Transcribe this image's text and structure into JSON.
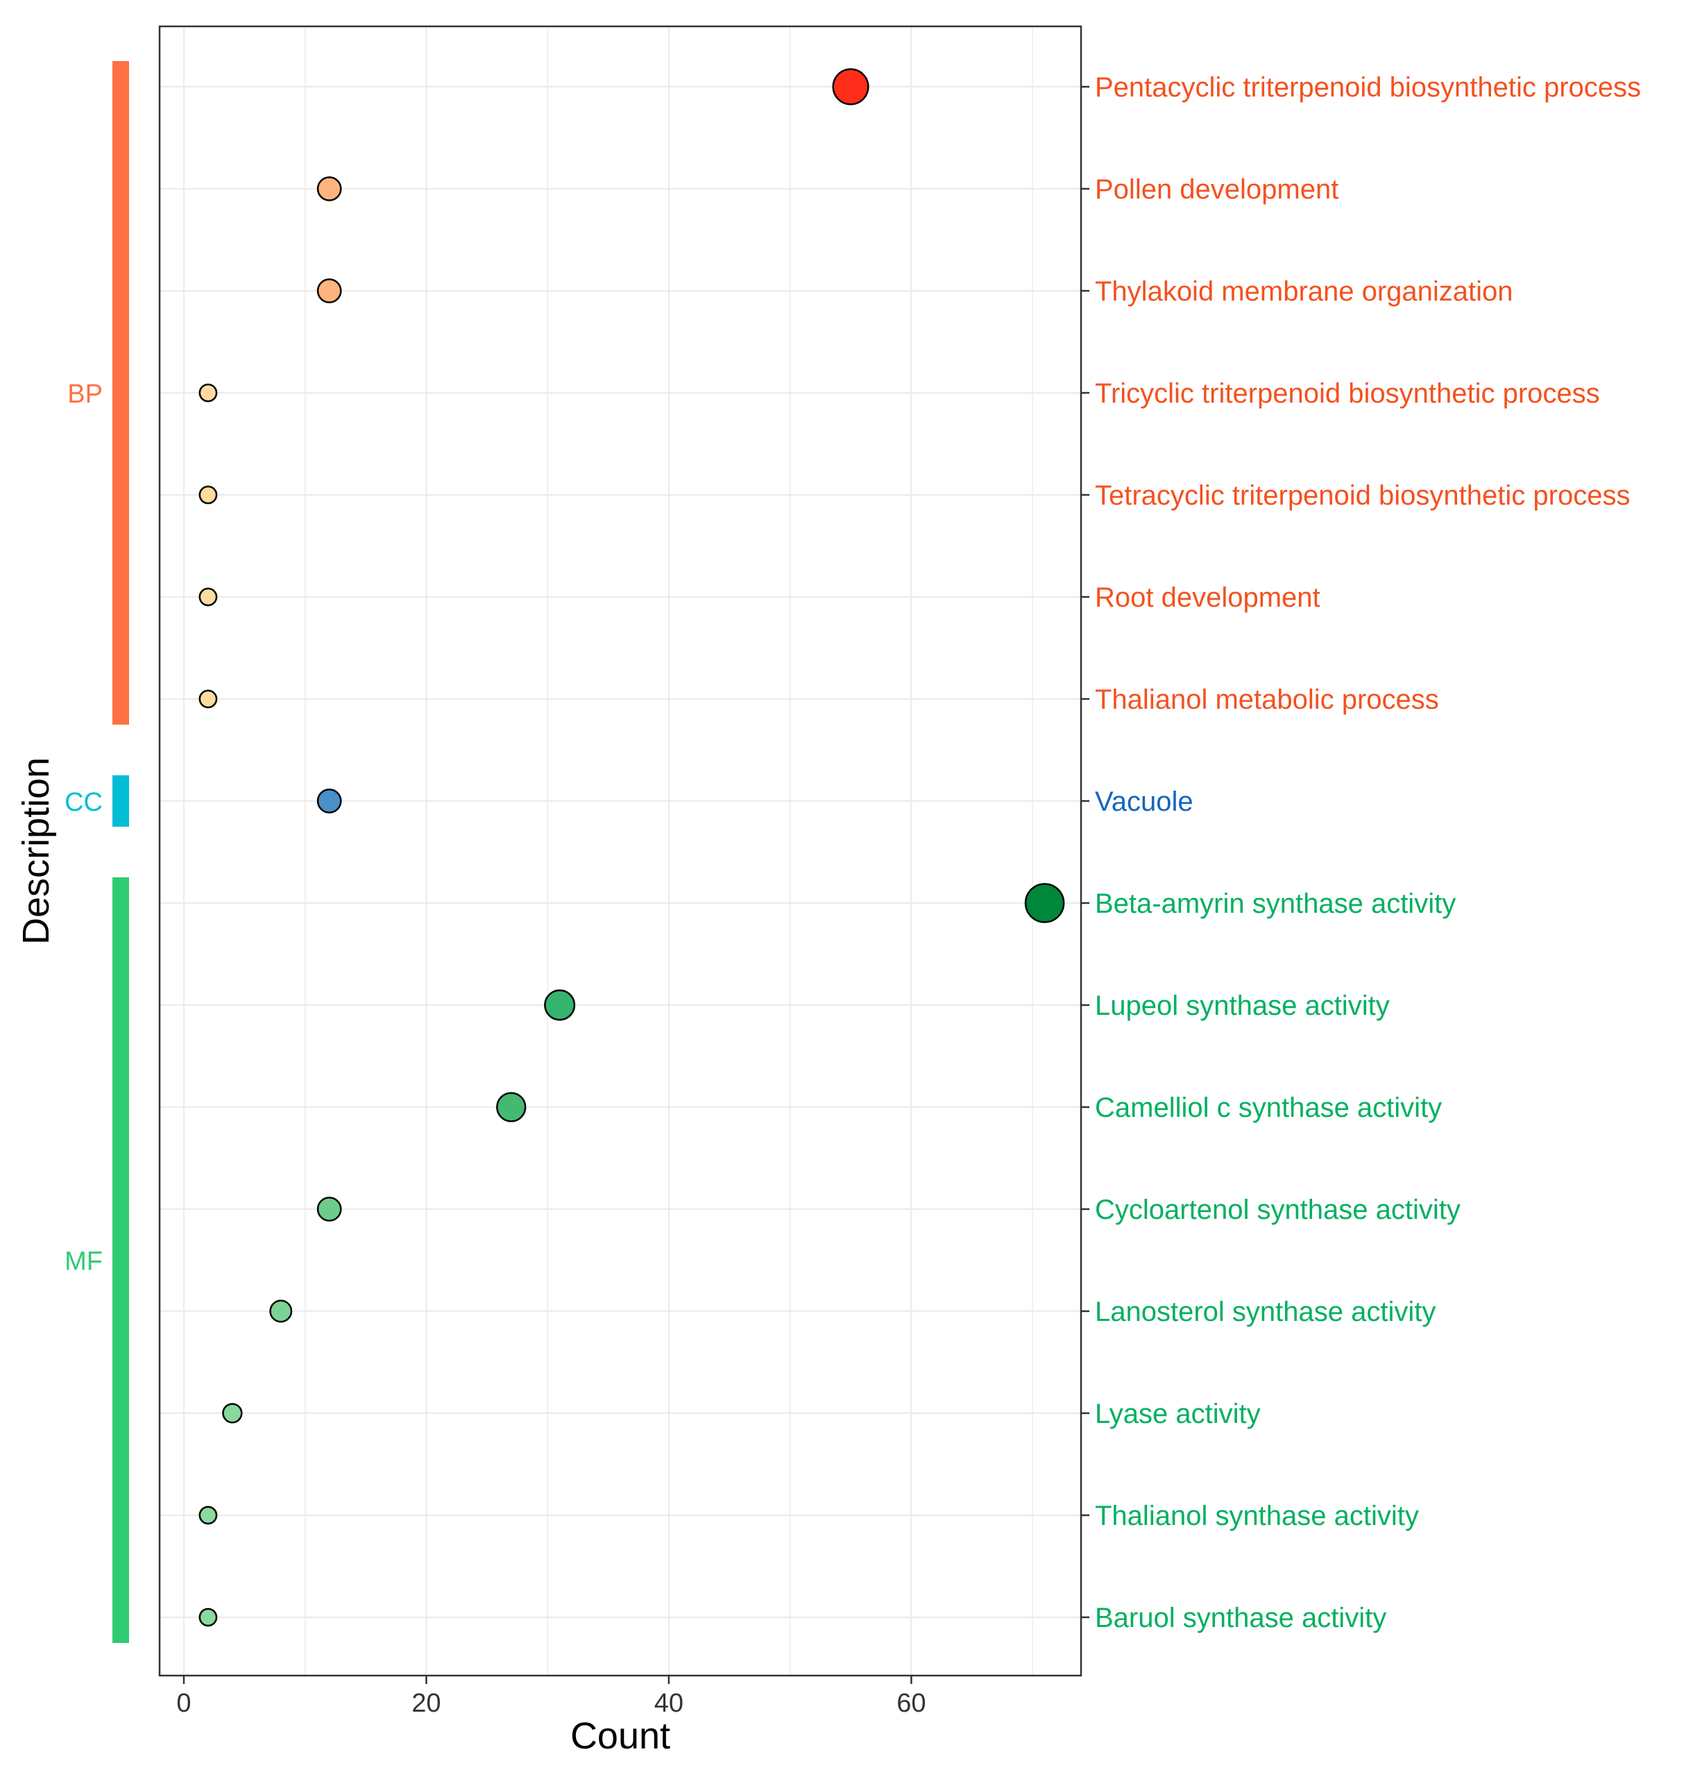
{
  "chart_data": {
    "type": "scatter",
    "title": "",
    "xlabel": "Count",
    "ylabel": "Description",
    "xlim": [
      -2,
      74
    ],
    "xticks": [
      0,
      20,
      40,
      60
    ],
    "grid": true,
    "points": [
      {
        "label": "Pentacyclic triterpenoid biosynthetic process",
        "category": "BP",
        "count": 55
      },
      {
        "label": "Pollen development",
        "category": "BP",
        "count": 12
      },
      {
        "label": "Thylakoid membrane organization",
        "category": "BP",
        "count": 12
      },
      {
        "label": "Tricyclic triterpenoid biosynthetic process",
        "category": "BP",
        "count": 2
      },
      {
        "label": "Tetracyclic triterpenoid biosynthetic process",
        "category": "BP",
        "count": 2
      },
      {
        "label": "Root development",
        "category": "BP",
        "count": 2
      },
      {
        "label": "Thalianol metabolic process",
        "category": "BP",
        "count": 2
      },
      {
        "label": "Vacuole",
        "category": "CC",
        "count": 12
      },
      {
        "label": "Beta-amyrin synthase activity",
        "category": "MF",
        "count": 71
      },
      {
        "label": "Lupeol synthase activity",
        "category": "MF",
        "count": 31
      },
      {
        "label": "Camelliol c synthase activity",
        "category": "MF",
        "count": 27
      },
      {
        "label": "Cycloartenol synthase activity",
        "category": "MF",
        "count": 12
      },
      {
        "label": "Lanosterol synthase activity",
        "category": "MF",
        "count": 8
      },
      {
        "label": "Lyase activity",
        "category": "MF",
        "count": 4
      },
      {
        "label": "Thalianol synthase activity",
        "category": "MF",
        "count": 2
      },
      {
        "label": "Baruol synthase activity",
        "category": "MF",
        "count": 2
      }
    ],
    "groups": [
      {
        "name": "BP",
        "bar_color": "#FF7043",
        "text_color": "#FF7043",
        "label_color": "#F4511E"
      },
      {
        "name": "CC",
        "bar_color": "#00BCD4",
        "text_color": "#00BCD4",
        "label_color": "#1565C0"
      },
      {
        "name": "MF",
        "bar_color": "#2ECC71",
        "text_color": "#2ECC71",
        "label_color": "#00B060"
      }
    ],
    "point_colors": [
      "#FF2D1A",
      "#FDB47E",
      "#FDB47E",
      "#FEDC9F",
      "#FEDC9F",
      "#FEDC9F",
      "#FEDC9F",
      "#4A90C8",
      "#00873A",
      "#35B46F",
      "#45B872",
      "#6DCC8A",
      "#7DD396",
      "#86D89C",
      "#8ADA9E",
      "#8ADA9E"
    ]
  }
}
